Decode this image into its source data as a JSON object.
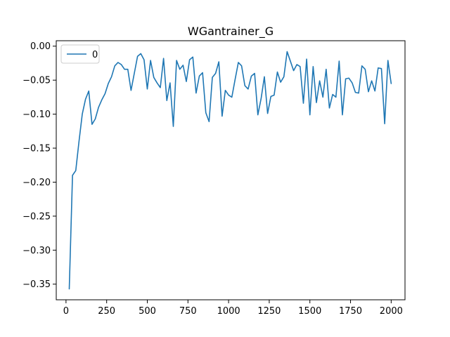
{
  "chart_data": {
    "type": "line",
    "title": "WGantrainer_G",
    "xlabel": "",
    "ylabel": "",
    "xlim": [
      -60,
      2085
    ],
    "ylim": [
      -0.373,
      0.008
    ],
    "xticks": [
      0,
      250,
      500,
      750,
      1000,
      1250,
      1500,
      1750,
      2000
    ],
    "xtick_labels": [
      "0",
      "250",
      "500",
      "750",
      "1000",
      "1250",
      "1500",
      "1750",
      "2000"
    ],
    "yticks": [
      0.0,
      -0.05,
      -0.1,
      -0.15,
      -0.2,
      -0.25,
      -0.3,
      -0.35
    ],
    "ytick_labels": [
      "0.00",
      "−0.05",
      "−0.10",
      "−0.15",
      "−0.20",
      "−0.25",
      "−0.30",
      "−0.35"
    ],
    "grid": false,
    "legend_position": "top-left",
    "series": [
      {
        "name": "0",
        "color": "#1f77b4",
        "x": [
          20,
          40,
          60,
          80,
          100,
          120,
          140,
          160,
          180,
          200,
          220,
          240,
          260,
          280,
          300,
          320,
          340,
          360,
          380,
          400,
          420,
          440,
          460,
          480,
          500,
          520,
          540,
          560,
          580,
          600,
          620,
          640,
          660,
          680,
          700,
          720,
          740,
          760,
          780,
          800,
          820,
          840,
          860,
          880,
          900,
          920,
          940,
          960,
          980,
          1000,
          1020,
          1040,
          1060,
          1080,
          1100,
          1120,
          1140,
          1160,
          1180,
          1200,
          1220,
          1240,
          1260,
          1280,
          1300,
          1320,
          1340,
          1360,
          1380,
          1400,
          1420,
          1440,
          1460,
          1480,
          1500,
          1520,
          1540,
          1560,
          1580,
          1600,
          1620,
          1640,
          1660,
          1680,
          1700,
          1720,
          1740,
          1760,
          1780,
          1800,
          1820,
          1840,
          1860,
          1880,
          1900,
          1920,
          1940,
          1960,
          1980,
          2000
        ],
        "values": [
          -0.357,
          -0.19,
          -0.183,
          -0.14,
          -0.1,
          -0.078,
          -0.066,
          -0.115,
          -0.107,
          -0.09,
          -0.079,
          -0.07,
          -0.055,
          -0.045,
          -0.029,
          -0.024,
          -0.027,
          -0.034,
          -0.034,
          -0.065,
          -0.04,
          -0.015,
          -0.011,
          -0.02,
          -0.063,
          -0.021,
          -0.046,
          -0.054,
          -0.061,
          -0.018,
          -0.08,
          -0.054,
          -0.118,
          -0.021,
          -0.034,
          -0.028,
          -0.052,
          -0.02,
          -0.016,
          -0.069,
          -0.044,
          -0.039,
          -0.098,
          -0.111,
          -0.046,
          -0.04,
          -0.023,
          -0.103,
          -0.065,
          -0.072,
          -0.075,
          -0.049,
          -0.024,
          -0.029,
          -0.058,
          -0.063,
          -0.044,
          -0.04,
          -0.101,
          -0.077,
          -0.045,
          -0.099,
          -0.074,
          -0.072,
          -0.038,
          -0.053,
          -0.045,
          -0.008,
          -0.022,
          -0.036,
          -0.027,
          -0.03,
          -0.084,
          -0.019,
          -0.101,
          -0.03,
          -0.083,
          -0.051,
          -0.075,
          -0.034,
          -0.091,
          -0.071,
          -0.075,
          -0.022,
          -0.101,
          -0.048,
          -0.047,
          -0.054,
          -0.068,
          -0.069,
          -0.029,
          -0.034,
          -0.067,
          -0.051,
          -0.066,
          -0.032,
          -0.033,
          -0.114,
          -0.021,
          -0.055
        ]
      }
    ]
  }
}
